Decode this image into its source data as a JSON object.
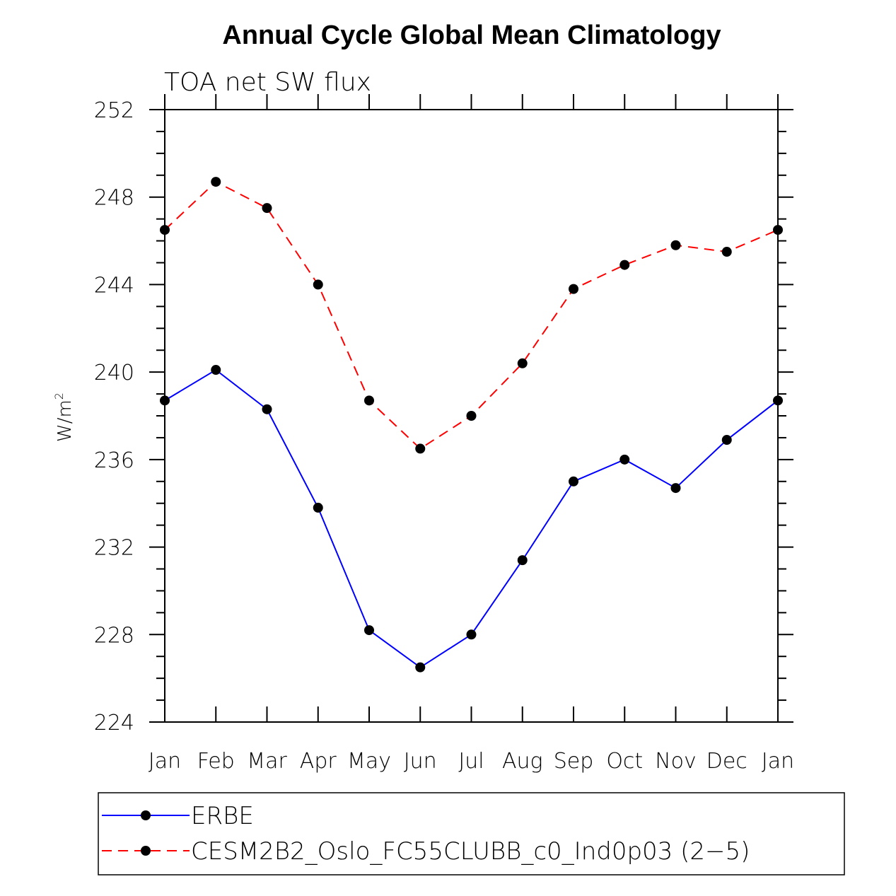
{
  "chart_data": {
    "type": "line",
    "title": "Annual Cycle Global Mean Climatology",
    "subtitle": "TOA net SW flux",
    "ylabel": "W/m",
    "ylabel_superscript": "2",
    "xlabel": "",
    "categories": [
      "Jan",
      "Feb",
      "Mar",
      "Apr",
      "May",
      "Jun",
      "Jul",
      "Aug",
      "Sep",
      "Oct",
      "Nov",
      "Dec",
      "Jan"
    ],
    "ylim": [
      224,
      252
    ],
    "yticks": [
      224,
      228,
      232,
      236,
      240,
      244,
      248,
      252
    ],
    "series": [
      {
        "name": "ERBE",
        "color": "#0000ff",
        "dash": "solid",
        "values": [
          238.7,
          240.1,
          238.3,
          233.8,
          228.2,
          226.5,
          228.0,
          231.4,
          235.0,
          236.0,
          234.7,
          236.9,
          238.7
        ]
      },
      {
        "name": "CESM2B2_Oslo_FC55CLUBB_c0_Ind0p03 (2−5)",
        "color": "#ff0000",
        "dash": "dashed",
        "values": [
          246.5,
          248.7,
          247.5,
          244.0,
          238.7,
          236.5,
          238.0,
          240.4,
          243.8,
          244.9,
          245.8,
          245.5,
          246.5
        ]
      }
    ],
    "legend_position": "bottom"
  }
}
